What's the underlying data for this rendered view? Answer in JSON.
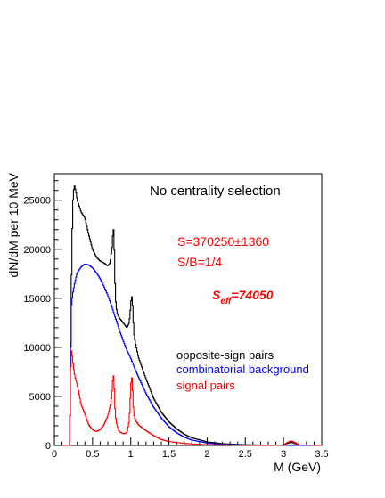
{
  "chart_data": {
    "type": "line",
    "xlabel": "M (GeV)",
    "ylabel": "dN/dM per 10 MeV",
    "xlim": [
      0,
      3.5
    ],
    "ylim": [
      0,
      27700
    ],
    "x_ticks": [
      0,
      0.5,
      1,
      1.5,
      2,
      2.5,
      3,
      3.5
    ],
    "x_tick_labels": [
      "0",
      "0.5",
      "1",
      "1.5",
      "2",
      "2.5",
      "3",
      "3.5"
    ],
    "y_ticks": [
      0,
      5000,
      10000,
      15000,
      20000,
      25000
    ],
    "y_tick_labels": [
      "0",
      "5000",
      "10000",
      "15000",
      "20000",
      "25000"
    ],
    "grid": false,
    "legend_position": "right",
    "annotations": {
      "centrality": "No centrality selection",
      "signal": "S=370250±1360",
      "sb_ratio": "S/B=1/4",
      "seff_base": "S",
      "seff_sub": "eff",
      "seff_value": "=74050"
    },
    "series": [
      {
        "name": "opposite-sign pairs",
        "color": "#000000",
        "x": [
          0.2,
          0.21,
          0.22,
          0.24,
          0.26,
          0.28,
          0.3,
          0.35,
          0.4,
          0.45,
          0.5,
          0.55,
          0.6,
          0.65,
          0.7,
          0.73,
          0.76,
          0.77,
          0.78,
          0.79,
          0.8,
          0.82,
          0.85,
          0.9,
          0.95,
          0.98,
          1.0,
          1.01,
          1.02,
          1.03,
          1.04,
          1.06,
          1.1,
          1.2,
          1.3,
          1.4,
          1.5,
          1.6,
          1.7,
          1.8,
          2.0,
          2.2,
          2.5,
          2.8,
          3.0,
          3.05,
          3.1,
          3.15,
          3.2,
          3.5
        ],
        "y": [
          0,
          6000,
          15000,
          24500,
          26600,
          26000,
          25000,
          23800,
          23200,
          21500,
          20000,
          19200,
          18800,
          18600,
          18300,
          18600,
          20500,
          22200,
          21800,
          18000,
          15000,
          13500,
          13000,
          12500,
          12000,
          12500,
          14200,
          15300,
          15000,
          13500,
          11500,
          10500,
          9000,
          6800,
          4800,
          3400,
          2400,
          1700,
          1150,
          780,
          370,
          180,
          70,
          30,
          30,
          200,
          350,
          200,
          40,
          0
        ]
      },
      {
        "name": "combinatorial background",
        "color": "#0000ff",
        "x": [
          0.2,
          0.21,
          0.22,
          0.24,
          0.26,
          0.28,
          0.3,
          0.35,
          0.4,
          0.45,
          0.5,
          0.55,
          0.6,
          0.65,
          0.7,
          0.75,
          0.8,
          0.85,
          0.9,
          0.95,
          1.0,
          1.05,
          1.1,
          1.2,
          1.3,
          1.4,
          1.5,
          1.6,
          1.7,
          1.8,
          2.0,
          2.2,
          2.5,
          2.8,
          3.0,
          3.5
        ],
        "y": [
          0,
          6000,
          14000,
          15400,
          16300,
          17000,
          17600,
          18200,
          18500,
          18400,
          18100,
          17600,
          17000,
          16200,
          15300,
          14200,
          13000,
          11800,
          10700,
          9700,
          8900,
          7900,
          7000,
          5300,
          3900,
          2800,
          1900,
          1300,
          850,
          550,
          250,
          110,
          40,
          15,
          10,
          0
        ]
      },
      {
        "name": "signal pairs",
        "color": "#ff0000",
        "x": [
          0.2,
          0.21,
          0.22,
          0.23,
          0.25,
          0.27,
          0.3,
          0.35,
          0.4,
          0.45,
          0.5,
          0.55,
          0.6,
          0.65,
          0.7,
          0.74,
          0.76,
          0.77,
          0.78,
          0.79,
          0.8,
          0.82,
          0.85,
          0.9,
          0.95,
          0.98,
          1.0,
          1.01,
          1.02,
          1.03,
          1.04,
          1.06,
          1.1,
          1.2,
          1.3,
          1.4,
          1.5,
          1.6,
          1.8,
          2.0,
          2.5,
          2.9,
          3.0,
          3.05,
          3.1,
          3.15,
          3.2,
          3.5
        ],
        "y": [
          0,
          6200,
          9800,
          9500,
          8000,
          7000,
          6200,
          4200,
          3200,
          2100,
          1600,
          1400,
          1600,
          2100,
          3000,
          4300,
          6000,
          7200,
          7000,
          4500,
          3000,
          2000,
          1400,
          1200,
          1300,
          2500,
          5600,
          7200,
          6600,
          4600,
          3200,
          2600,
          2100,
          1500,
          1000,
          600,
          400,
          300,
          150,
          80,
          20,
          10,
          40,
          300,
          460,
          300,
          60,
          0
        ]
      }
    ]
  }
}
